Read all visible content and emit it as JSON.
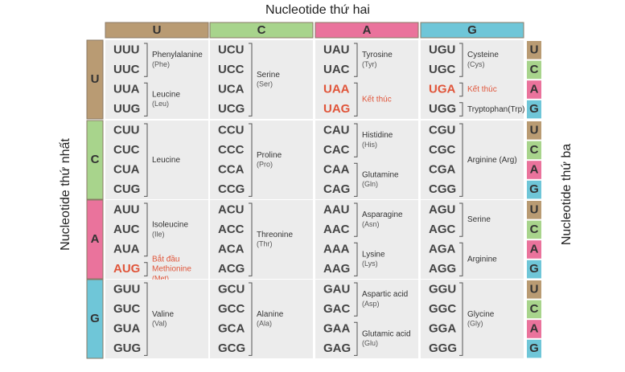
{
  "top_label": "Nucleotide thứ hai",
  "left_label": "Nucleotide thứ nhất",
  "right_label": "Nucleotide thứ ba",
  "base_colors": {
    "U": "#b99b73",
    "C": "#a8d48c",
    "A": "#ea739c",
    "G": "#6fc6d8"
  },
  "highlight_color": "#e0553a",
  "columns": [
    "U",
    "C",
    "A",
    "G"
  ],
  "rows": [
    {
      "base": "U",
      "third": [
        "U",
        "C",
        "A",
        "G"
      ],
      "cells": [
        {
          "groups": [
            {
              "codons": [
                "UUU",
                "UUC"
              ],
              "labels": [
                "Phenylalanine",
                "(Phe)"
              ]
            },
            {
              "codons": [
                "UUA",
                "UUG"
              ],
              "labels": [
                "Leucine",
                "(Leu)"
              ]
            }
          ]
        },
        {
          "groups": [
            {
              "codons": [
                "UCU",
                "UCC",
                "UCA",
                "UCG"
              ],
              "labels": [
                "Serine",
                "(Ser)"
              ]
            }
          ]
        },
        {
          "groups": [
            {
              "codons": [
                "UAU",
                "UAC"
              ],
              "labels": [
                "Tyrosine",
                "(Tyr)"
              ]
            },
            {
              "codons": [
                "UAA",
                "UAG"
              ],
              "labels": [
                "Kết thúc"
              ],
              "highlight": true
            }
          ]
        },
        {
          "groups": [
            {
              "codons": [
                "UGU",
                "UGC"
              ],
              "labels": [
                "Cysteine",
                "(Cys)"
              ]
            },
            {
              "codons": [
                "UGA"
              ],
              "labels": [
                "Kết thúc"
              ],
              "highlight": true
            },
            {
              "codons": [
                "UGG"
              ],
              "labels": [
                "Tryptophan",
                "(Trp)"
              ]
            }
          ]
        }
      ]
    },
    {
      "base": "C",
      "third": [
        "U",
        "C",
        "A",
        "G"
      ],
      "cells": [
        {
          "groups": [
            {
              "codons": [
                "CUU",
                "CUC",
                "CUA",
                "CUG"
              ],
              "labels": [
                "Leucine"
              ]
            }
          ]
        },
        {
          "groups": [
            {
              "codons": [
                "CCU",
                "CCC",
                "CCA",
                "CCG"
              ],
              "labels": [
                "Proline",
                "(Pro)"
              ]
            }
          ]
        },
        {
          "groups": [
            {
              "codons": [
                "CAU",
                "CAC"
              ],
              "labels": [
                "Histidine",
                "(His)"
              ]
            },
            {
              "codons": [
                "CAA",
                "CAG"
              ],
              "labels": [
                "Glutamine",
                "(Gln)"
              ]
            }
          ]
        },
        {
          "groups": [
            {
              "codons": [
                "CGU",
                "CGC",
                "CGA",
                "CGG"
              ],
              "labels": [
                "Arginine (Arg)"
              ]
            }
          ]
        }
      ]
    },
    {
      "base": "A",
      "third": [
        "U",
        "C",
        "A",
        "G"
      ],
      "cells": [
        {
          "groups": [
            {
              "codons": [
                "AUU",
                "AUC",
                "AUA"
              ],
              "labels": [
                "Isoleucine",
                "(Ile)"
              ]
            },
            {
              "codons": [
                "AUG"
              ],
              "labels": [
                "Bắt đầu",
                "Methionine",
                "(Met)"
              ],
              "highlight": true
            }
          ]
        },
        {
          "groups": [
            {
              "codons": [
                "ACU",
                "ACC",
                "ACA",
                "ACG"
              ],
              "labels": [
                "Threonine",
                "(Thr)"
              ]
            }
          ]
        },
        {
          "groups": [
            {
              "codons": [
                "AAU",
                "AAC"
              ],
              "labels": [
                "Asparagine",
                "(Asn)"
              ]
            },
            {
              "codons": [
                "AAA",
                "AAG"
              ],
              "labels": [
                "Lysine",
                "(Lys)"
              ]
            }
          ]
        },
        {
          "groups": [
            {
              "codons": [
                "AGU",
                "AGC"
              ],
              "labels": [
                "Serine"
              ]
            },
            {
              "codons": [
                "AGA",
                "AGG"
              ],
              "labels": [
                "Arginine"
              ]
            }
          ]
        }
      ]
    },
    {
      "base": "G",
      "third": [
        "U",
        "C",
        "A",
        "G"
      ],
      "cells": [
        {
          "groups": [
            {
              "codons": [
                "GUU",
                "GUC",
                "GUA",
                "GUG"
              ],
              "labels": [
                "Valine",
                "(Val)"
              ]
            }
          ]
        },
        {
          "groups": [
            {
              "codons": [
                "GCU",
                "GCC",
                "GCA",
                "GCG"
              ],
              "labels": [
                "Alanine",
                "(Ala)"
              ]
            }
          ]
        },
        {
          "groups": [
            {
              "codons": [
                "GAU",
                "GAC"
              ],
              "labels": [
                "Aspartic acid",
                "(Asp)"
              ]
            },
            {
              "codons": [
                "GAA",
                "GAG"
              ],
              "labels": [
                "Glutamic acid",
                "(Glu)"
              ]
            }
          ]
        },
        {
          "groups": [
            {
              "codons": [
                "GGU",
                "GGC",
                "GGA",
                "GGG"
              ],
              "labels": [
                "Glycine",
                "(Gly)"
              ]
            }
          ]
        }
      ]
    }
  ]
}
